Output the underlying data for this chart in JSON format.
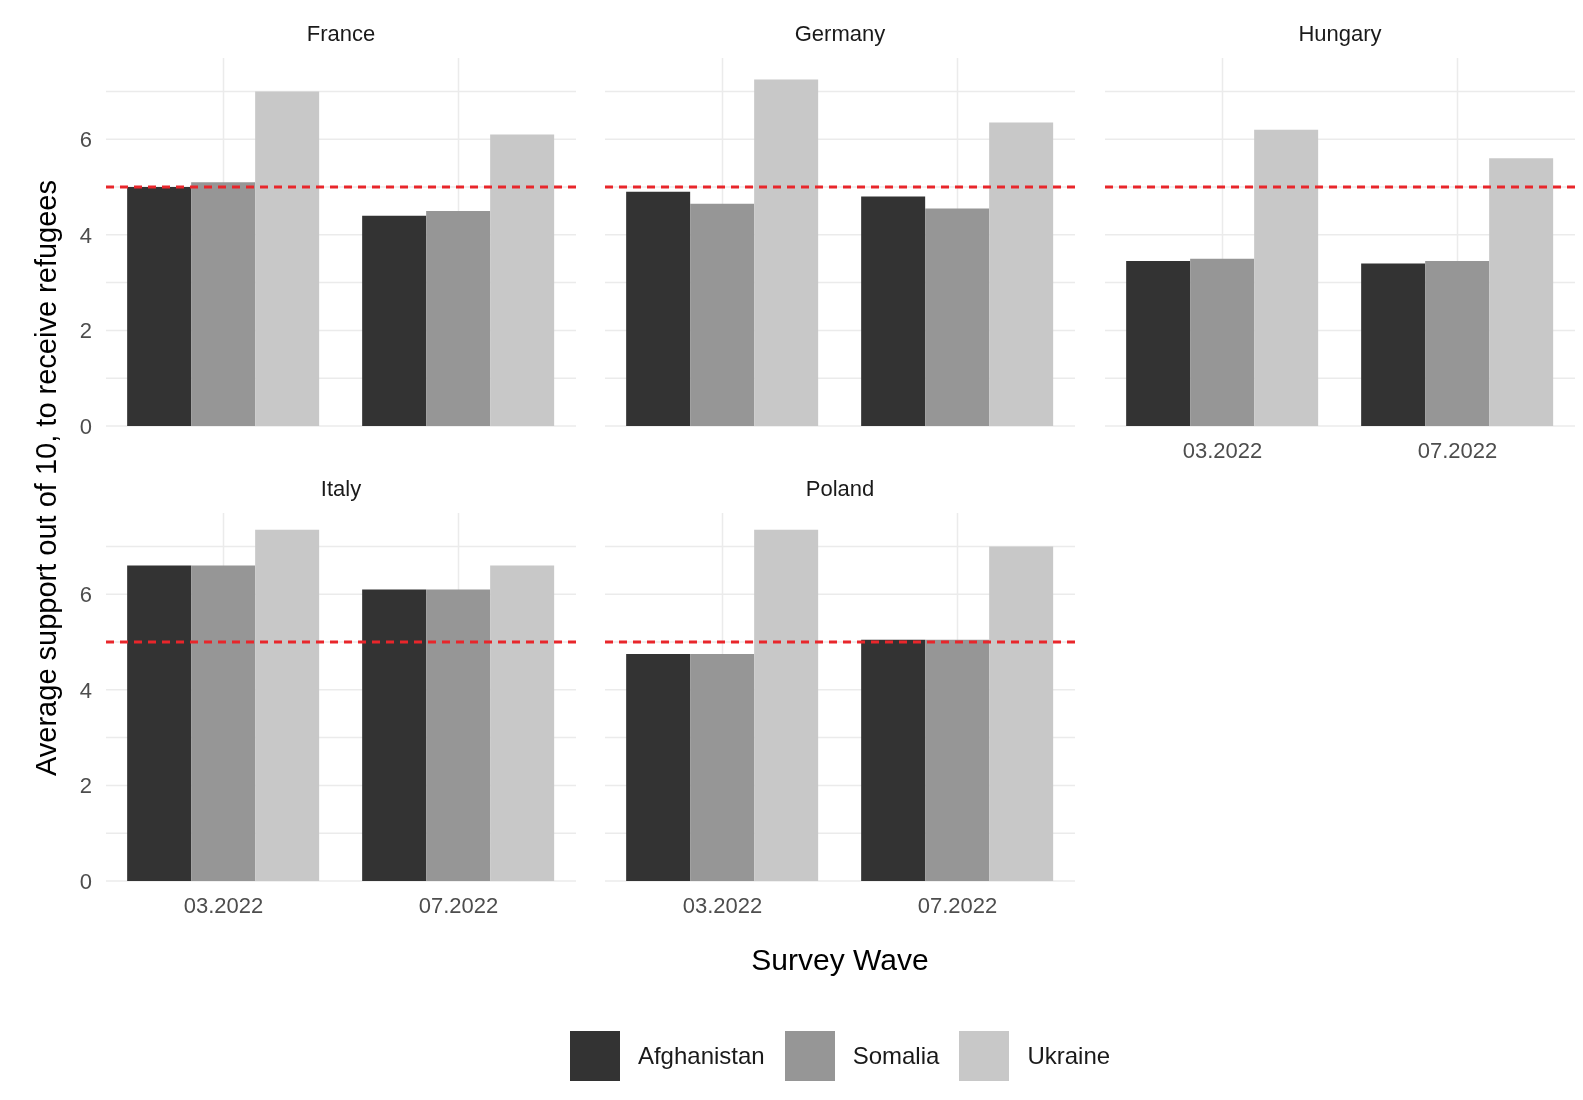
{
  "chart_data": [
    {
      "type": "bar",
      "title": "France",
      "ylabel": "Average support out of 10, to receive refugees",
      "categories": [
        "03.2022",
        "07.2022"
      ],
      "series": [
        {
          "color": "#333333",
          "values": [
            5.0,
            4.4
          ]
        },
        {
          "color": "#969696",
          "values": [
            5.1,
            4.5
          ]
        },
        {
          "color": "#c8c8c8",
          "values": [
            7.0,
            6.1
          ]
        }
      ],
      "ylim": [
        0,
        7.7
      ],
      "yticks": [
        0,
        {
          "value": 1,
          "label": null
        },
        2,
        {
          "value": 3,
          "label": null
        },
        4,
        {
          "value": 5,
          "label": null
        },
        6,
        {
          "value": 7,
          "label": null
        }
      ],
      "grid": true,
      "tick_labels": "y",
      "ref_lines": [
        {
          "axis": "y",
          "value": 5,
          "color": "#e8262b",
          "line_style": "dashed"
        }
      ]
    },
    {
      "type": "bar",
      "title": "Germany",
      "categories": [
        "03.2022",
        "07.2022"
      ],
      "series": [
        {
          "color": "#333333",
          "values": [
            4.9,
            4.8
          ]
        },
        {
          "color": "#969696",
          "values": [
            4.65,
            4.55
          ]
        },
        {
          "color": "#c8c8c8",
          "values": [
            7.25,
            6.35
          ]
        }
      ],
      "ylim": [
        0,
        7.7
      ],
      "yticks": [
        0,
        {
          "value": 1,
          "label": null
        },
        2,
        {
          "value": 3,
          "label": null
        },
        4,
        {
          "value": 5,
          "label": null
        },
        6,
        {
          "value": 7,
          "label": null
        }
      ],
      "grid": true,
      "tick_labels": false,
      "ref_lines": [
        {
          "axis": "y",
          "value": 5,
          "color": "#e8262b",
          "line_style": "dashed"
        }
      ]
    },
    {
      "type": "bar",
      "title": "Hungary",
      "categories": [
        "03.2022",
        "07.2022"
      ],
      "series": [
        {
          "color": "#333333",
          "values": [
            3.45,
            3.4
          ]
        },
        {
          "color": "#969696",
          "values": [
            3.5,
            3.45
          ]
        },
        {
          "color": "#c8c8c8",
          "values": [
            6.2,
            5.6
          ]
        }
      ],
      "ylim": [
        0,
        7.7
      ],
      "yticks": [
        0,
        {
          "value": 1,
          "label": null
        },
        2,
        {
          "value": 3,
          "label": null
        },
        4,
        {
          "value": 5,
          "label": null
        },
        6,
        {
          "value": 7,
          "label": null
        }
      ],
      "grid": true,
      "tick_labels": "x",
      "ref_lines": [
        {
          "axis": "y",
          "value": 5,
          "color": "#e8262b",
          "line_style": "dashed"
        }
      ]
    },
    {
      "type": "bar",
      "title": "Italy",
      "categories": [
        "03.2022",
        "07.2022"
      ],
      "series": [
        {
          "color": "#333333",
          "values": [
            6.6,
            6.1
          ]
        },
        {
          "color": "#969696",
          "values": [
            6.6,
            6.1
          ]
        },
        {
          "color": "#c8c8c8",
          "values": [
            7.35,
            6.6
          ]
        }
      ],
      "ylim": [
        0,
        7.7
      ],
      "yticks": [
        0,
        {
          "value": 1,
          "label": null
        },
        2,
        {
          "value": 3,
          "label": null
        },
        4,
        {
          "value": 5,
          "label": null
        },
        6,
        {
          "value": 7,
          "label": null
        }
      ],
      "grid": true,
      "ref_lines": [
        {
          "axis": "y",
          "value": 5,
          "color": "#e8262b",
          "line_style": "dashed"
        }
      ]
    },
    {
      "type": "bar",
      "title": "Poland",
      "xlabel": "Survey Wave",
      "legend": "bottom",
      "categories": [
        "03.2022",
        "07.2022"
      ],
      "series": [
        {
          "name": "Afghanistan",
          "color": "#333333",
          "values": [
            4.75,
            5.05
          ]
        },
        {
          "name": "Somalia",
          "color": "#969696",
          "values": [
            4.75,
            5.05
          ]
        },
        {
          "name": "Ukraine",
          "color": "#c8c8c8",
          "values": [
            7.35,
            7.0
          ]
        }
      ],
      "ylim": [
        0,
        7.7
      ],
      "yticks": [
        0,
        {
          "value": 1,
          "label": null
        },
        2,
        {
          "value": 3,
          "label": null
        },
        4,
        {
          "value": 5,
          "label": null
        },
        6,
        {
          "value": 7,
          "label": null
        }
      ],
      "grid": true,
      "tick_labels": "x",
      "ref_lines": [
        {
          "axis": "y",
          "value": 5,
          "color": "#e8262b",
          "line_style": "dashed"
        }
      ]
    }
  ]
}
